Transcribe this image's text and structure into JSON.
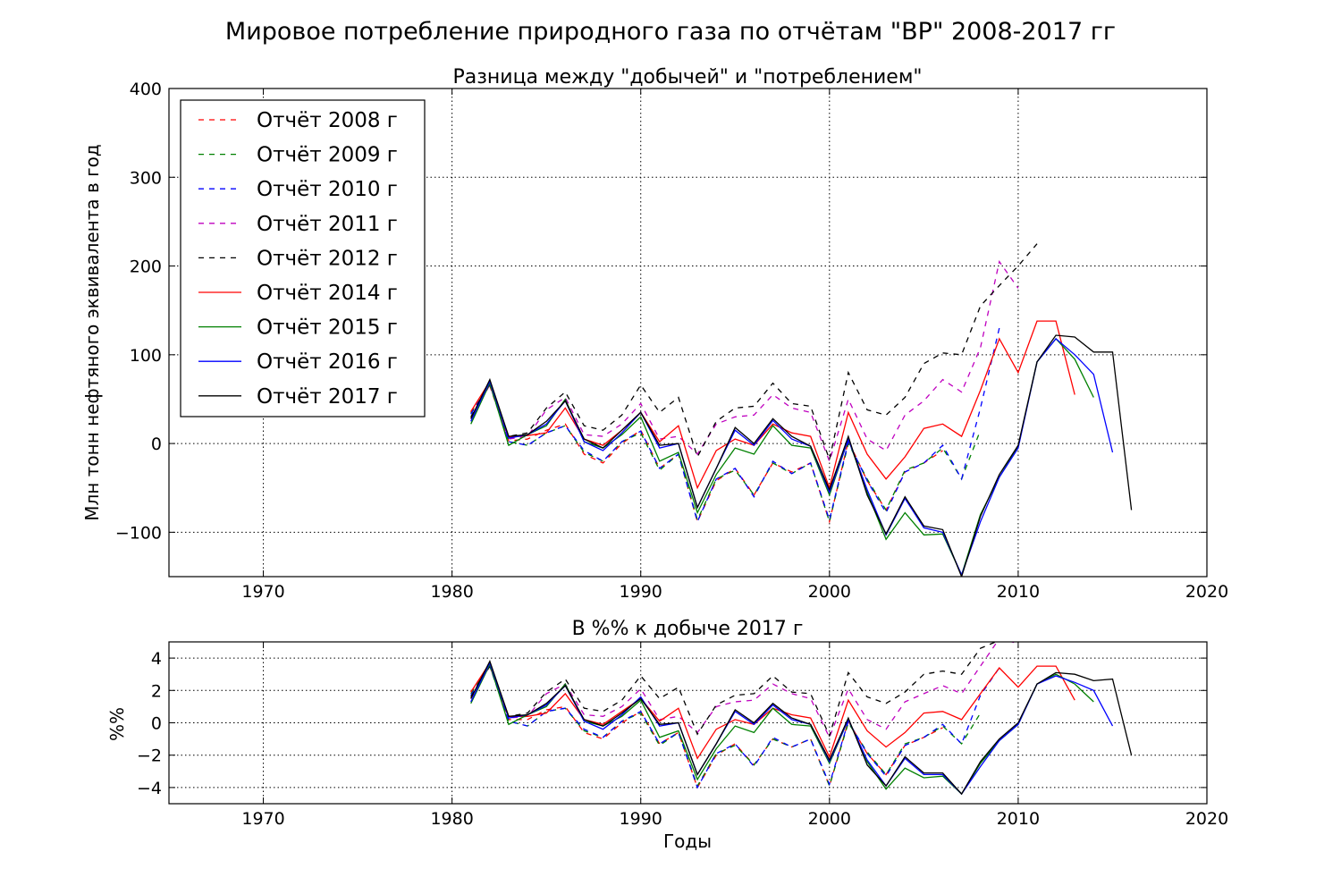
{
  "suptitle": "Мировое потребление природного газа по отчётам \"BP\" 2008-2017 гг",
  "chart_data": [
    {
      "type": "line",
      "title": "Разница между \"добычей\" и \"потреблением\"",
      "xlabel": "",
      "ylabel": "Млн тонн нефтяного эквивалента в год",
      "xlim": [
        1965,
        2020
      ],
      "ylim": [
        -150,
        400
      ],
      "xticks": [
        "1970",
        "1980",
        "1990",
        "2000",
        "2010",
        "2020"
      ],
      "yticks": [
        "−100",
        "0",
        "100",
        "200",
        "300",
        "400"
      ],
      "grid": true,
      "legend_position": "upper-left",
      "series": [
        {
          "name": "Отчёт 2008 г",
          "color": "#ff0000",
          "dash": "dashed",
          "x0": 1981,
          "values": [
            35,
            65,
            3,
            5,
            15,
            22,
            -12,
            -22,
            0,
            15,
            -28,
            -12,
            -88,
            -42,
            -28,
            -58,
            -22,
            -32,
            -22,
            -88,
            3,
            -42,
            -75,
            -32,
            -22,
            -8
          ]
        },
        {
          "name": "Отчёт 2009 г",
          "color": "#008000",
          "dash": "dashed",
          "x0": 1981,
          "values": [
            34,
            66,
            2,
            -2,
            12,
            20,
            -10,
            -20,
            2,
            12,
            -30,
            -12,
            -86,
            -40,
            -30,
            -58,
            -22,
            -34,
            -22,
            -88,
            0,
            -40,
            -75,
            -30,
            -22,
            -5,
            -40,
            15
          ]
        },
        {
          "name": "Отчёт 2010 г",
          "color": "#0000ff",
          "dash": "dashed",
          "x0": 1981,
          "values": [
            33,
            67,
            2,
            -2,
            12,
            20,
            -8,
            -20,
            2,
            14,
            -28,
            -12,
            -88,
            -40,
            -28,
            -60,
            -20,
            -34,
            -22,
            -86,
            2,
            -42,
            -78,
            -32,
            -22,
            -2,
            -40,
            40,
            130
          ]
        },
        {
          "name": "Отчёт 2011 г",
          "color": "#bf00bf",
          "dash": "dashed",
          "x0": 1981,
          "values": [
            28,
            66,
            5,
            8,
            38,
            52,
            10,
            8,
            22,
            45,
            5,
            8,
            -12,
            22,
            30,
            32,
            55,
            40,
            35,
            -20,
            50,
            5,
            -8,
            32,
            48,
            72,
            58,
            108,
            205,
            175
          ]
        },
        {
          "name": "Отчёт 2012 г",
          "color": "#000000",
          "dash": "dashed",
          "x0": 1981,
          "values": [
            30,
            67,
            8,
            12,
            40,
            58,
            20,
            15,
            32,
            66,
            35,
            52,
            -15,
            25,
            40,
            42,
            68,
            45,
            42,
            -18,
            80,
            38,
            32,
            52,
            90,
            102,
            100,
            155,
            178,
            200,
            225
          ]
        },
        {
          "name": "Отчёт 2014 г",
          "color": "#ff0000",
          "dash": "solid",
          "x0": 1981,
          "values": [
            36,
            70,
            7,
            9,
            12,
            40,
            5,
            -2,
            15,
            35,
            2,
            20,
            -50,
            -8,
            5,
            -2,
            22,
            12,
            8,
            -50,
            35,
            -12,
            -40,
            -15,
            17,
            22,
            8,
            60,
            118,
            80,
            138,
            138,
            55
          ]
        },
        {
          "name": "Отчёт 2015 г",
          "color": "#008000",
          "dash": "solid",
          "x0": 1981,
          "values": [
            22,
            68,
            -2,
            10,
            20,
            50,
            2,
            -5,
            10,
            30,
            -20,
            -10,
            -78,
            -35,
            -5,
            -12,
            20,
            -2,
            -5,
            -58,
            5,
            -55,
            -108,
            -78,
            -103,
            -102,
            -148,
            -80,
            -38,
            -3,
            92,
            118,
            95,
            52
          ]
        },
        {
          "name": "Отчёт 2016 г",
          "color": "#0000ff",
          "dash": "solid",
          "x0": 1981,
          "values": [
            25,
            70,
            6,
            10,
            22,
            48,
            2,
            -8,
            12,
            35,
            -5,
            0,
            -72,
            -28,
            15,
            -2,
            26,
            5,
            -3,
            -55,
            5,
            -52,
            -103,
            -62,
            -95,
            -100,
            -148,
            -88,
            -38,
            -5,
            92,
            118,
            100,
            78,
            -10
          ]
        },
        {
          "name": "Отчёт 2017 г",
          "color": "#000000",
          "dash": "solid",
          "x0": 1981,
          "values": [
            28,
            72,
            8,
            10,
            25,
            48,
            5,
            -5,
            15,
            35,
            -2,
            0,
            -72,
            -28,
            18,
            0,
            28,
            8,
            -3,
            -52,
            8,
            -58,
            -102,
            -60,
            -93,
            -97,
            -150,
            -82,
            -35,
            -2,
            92,
            122,
            120,
            103,
            103,
            -75
          ]
        }
      ]
    },
    {
      "type": "line",
      "title": "В %% к добыче 2017 г",
      "xlabel": "Годы",
      "ylabel": "%%",
      "xlim": [
        1965,
        2020
      ],
      "ylim": [
        -5,
        5
      ],
      "xticks": [
        "1970",
        "1980",
        "1990",
        "2000",
        "2010",
        "2020"
      ],
      "yticks": [
        "−4",
        "−2",
        "0",
        "2",
        "4"
      ],
      "grid": true,
      "series": [
        {
          "name": "Отчёт 2008 г",
          "color": "#ff0000",
          "dash": "dashed",
          "x0": 1981,
          "values": [
            1.9,
            3.5,
            0.2,
            0.2,
            0.8,
            1.0,
            -0.6,
            -1.0,
            0.0,
            0.7,
            -1.3,
            -0.6,
            -4.0,
            -2.0,
            -1.3,
            -2.6,
            -1.0,
            -1.5,
            -1.0,
            -3.9,
            0.1,
            -1.9,
            -3.2,
            -1.4,
            -0.9,
            -0.3
          ]
        },
        {
          "name": "Отчёт 2009 г",
          "color": "#008000",
          "dash": "dashed",
          "x0": 1981,
          "values": [
            1.8,
            3.5,
            0.1,
            -0.2,
            0.7,
            0.9,
            -0.5,
            -0.9,
            0.1,
            0.6,
            -1.4,
            -0.6,
            -3.9,
            -1.9,
            -1.4,
            -2.6,
            -1.0,
            -1.5,
            -1.0,
            -3.9,
            0.0,
            -1.8,
            -3.2,
            -1.3,
            -0.9,
            -0.2,
            -1.3,
            0.6
          ]
        },
        {
          "name": "Отчёт 2010 г",
          "color": "#0000ff",
          "dash": "dashed",
          "x0": 1981,
          "values": [
            1.7,
            3.5,
            0.1,
            -0.2,
            0.7,
            0.9,
            -0.4,
            -0.9,
            0.1,
            0.7,
            -1.3,
            -0.6,
            -4.0,
            -1.9,
            -1.3,
            -2.7,
            -0.9,
            -1.5,
            -1.0,
            -3.8,
            0.1,
            -1.9,
            -3.3,
            -1.4,
            -0.9,
            -0.1,
            -1.3,
            1.7,
            3.4
          ]
        },
        {
          "name": "Отчёт 2011 г",
          "color": "#bf00bf",
          "dash": "dashed",
          "x0": 1981,
          "values": [
            1.5,
            3.5,
            0.3,
            0.4,
            1.8,
            2.4,
            0.5,
            0.4,
            1.0,
            2.1,
            0.2,
            0.4,
            -0.6,
            1.0,
            1.3,
            1.4,
            2.4,
            1.8,
            1.5,
            -0.9,
            2.1,
            0.2,
            -0.4,
            1.3,
            1.8,
            2.3,
            1.8,
            3.5,
            5.2,
            4.9
          ]
        },
        {
          "name": "Отчёт 2012 г",
          "color": "#000000",
          "dash": "dashed",
          "x0": 1981,
          "values": [
            1.6,
            3.5,
            0.4,
            0.6,
            1.9,
            2.7,
            0.9,
            0.7,
            1.4,
            2.9,
            1.5,
            2.2,
            -0.7,
            1.1,
            1.7,
            1.8,
            2.9,
            1.9,
            1.8,
            -0.8,
            3.1,
            1.6,
            1.2,
            1.9,
            3.0,
            3.2,
            3.0,
            4.6,
            5.1,
            5.5,
            6.0
          ]
        },
        {
          "name": "Отчёт 2014 г",
          "color": "#ff0000",
          "dash": "solid",
          "x0": 1981,
          "values": [
            1.9,
            3.7,
            0.4,
            0.4,
            0.6,
            1.8,
            0.2,
            -0.1,
            0.7,
            1.5,
            0.1,
            0.9,
            -2.2,
            -0.4,
            0.2,
            -0.1,
            0.9,
            0.5,
            0.3,
            -2.1,
            1.4,
            -0.5,
            -1.5,
            -0.6,
            0.6,
            0.7,
            0.2,
            1.8,
            3.4,
            2.2,
            3.5,
            3.5,
            1.4
          ]
        },
        {
          "name": "Отчёт 2015 г",
          "color": "#008000",
          "dash": "solid",
          "x0": 1981,
          "values": [
            1.2,
            3.6,
            -0.1,
            0.5,
            1.0,
            2.4,
            0.1,
            -0.2,
            0.4,
            1.4,
            -0.9,
            -0.5,
            -3.5,
            -1.6,
            -0.2,
            -0.6,
            0.9,
            -0.1,
            -0.2,
            -2.5,
            0.2,
            -2.4,
            -4.1,
            -2.8,
            -3.4,
            -3.3,
            -4.4,
            -2.5,
            -1.1,
            -0.1,
            2.4,
            3.0,
            2.4,
            1.3
          ]
        },
        {
          "name": "Отчёт 2016 г",
          "color": "#0000ff",
          "dash": "solid",
          "x0": 1981,
          "values": [
            1.3,
            3.7,
            0.3,
            0.5,
            1.1,
            2.3,
            0.1,
            -0.4,
            0.5,
            1.6,
            -0.2,
            0.0,
            -3.2,
            -1.3,
            0.7,
            -0.1,
            1.1,
            0.2,
            -0.1,
            -2.4,
            0.2,
            -2.3,
            -3.9,
            -2.2,
            -3.2,
            -3.2,
            -4.4,
            -2.7,
            -1.1,
            -0.1,
            2.4,
            2.9,
            2.5,
            2.0,
            -0.2
          ]
        },
        {
          "name": "Отчёт 2017 г",
          "color": "#000000",
          "dash": "solid",
          "x0": 1981,
          "values": [
            1.5,
            3.8,
            0.4,
            0.5,
            1.2,
            2.3,
            0.2,
            -0.2,
            0.6,
            1.5,
            -0.1,
            0.0,
            -3.2,
            -1.3,
            0.8,
            0.0,
            1.2,
            0.3,
            -0.1,
            -2.3,
            0.3,
            -2.6,
            -3.9,
            -2.1,
            -3.1,
            -3.1,
            -4.4,
            -2.4,
            -1.0,
            0.0,
            2.4,
            3.1,
            3.0,
            2.6,
            2.7,
            -2.0
          ]
        }
      ]
    }
  ]
}
